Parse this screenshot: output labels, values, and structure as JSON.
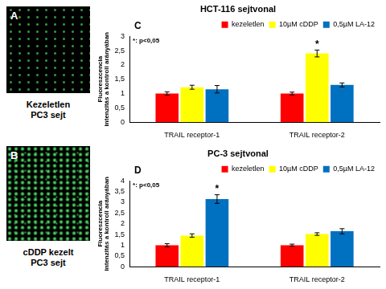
{
  "panels": [
    {
      "label": "A",
      "caption": [
        "Kezeletlen",
        "PC3 sejt"
      ]
    },
    {
      "label": "B",
      "caption": [
        "cDDP kezelt",
        "PC3 sejt"
      ]
    }
  ],
  "chart_data": [
    {
      "type": "bar",
      "panel": "C",
      "title": "HCT-116 sejtvonal",
      "note": "*: p<0,05",
      "ylabel": [
        "Fluoreszcencia",
        "intenzitás a kontroll arányában"
      ],
      "categories": [
        "TRAIL receptor-1",
        "TRAIL receptor-2"
      ],
      "series": [
        {
          "name": "kezeletlen",
          "color": "#ff0000",
          "values": [
            1,
            1
          ],
          "errors": [
            0.06,
            0.05
          ]
        },
        {
          "name": "10µM cDDP",
          "color": "#ffff00",
          "values": [
            1.22,
            2.4
          ],
          "errors": [
            0.07,
            0.12
          ]
        },
        {
          "name": "0,5µM LA-12",
          "color": "#0070c0",
          "values": [
            1.15,
            1.3
          ],
          "errors": [
            0.13,
            0.07
          ]
        }
      ],
      "annotations": [
        {
          "text": "*",
          "series": 1,
          "category": 1
        }
      ],
      "ylim": [
        0,
        3
      ],
      "yticks": [
        0,
        {
          "value": 0.5,
          "label": "0,5"
        },
        1,
        {
          "value": 1.5,
          "label": "1,5"
        },
        2,
        {
          "value": 2.5,
          "label": "2,5"
        },
        3
      ],
      "grid": false,
      "legend": "top-right"
    },
    {
      "type": "bar",
      "panel": "D",
      "title": "PC-3 sejtvonal",
      "note": "*: p<0,05",
      "ylabel": [
        "Fluoreszcencia",
        "intenzitás a kontroll arányában"
      ],
      "categories": [
        "TRAIL receptor-1",
        "TRAIL receptor-2"
      ],
      "series": [
        {
          "name": "kezeletlen",
          "color": "#ff0000",
          "values": [
            1,
            1
          ],
          "errors": [
            0.07,
            0.05
          ]
        },
        {
          "name": "10µM cDDP",
          "color": "#ffff00",
          "values": [
            1.45,
            1.52
          ],
          "errors": [
            0.08,
            0.06
          ]
        },
        {
          "name": "0,5µM LA-12",
          "color": "#0070c0",
          "values": [
            3.15,
            1.65
          ],
          "errors": [
            0.2,
            0.12
          ]
        }
      ],
      "annotations": [
        {
          "text": "*",
          "series": 2,
          "category": 0
        }
      ],
      "ylim": [
        0,
        4
      ],
      "yticks": [
        0,
        {
          "value": 0.5,
          "label": "0,5"
        },
        1,
        {
          "value": 1.5,
          "label": "1,5"
        },
        2,
        {
          "value": 2.5,
          "label": "2,5"
        },
        3,
        {
          "value": 3.5,
          "label": "3,5"
        },
        4
      ],
      "grid": false,
      "legend": "top-right"
    }
  ]
}
